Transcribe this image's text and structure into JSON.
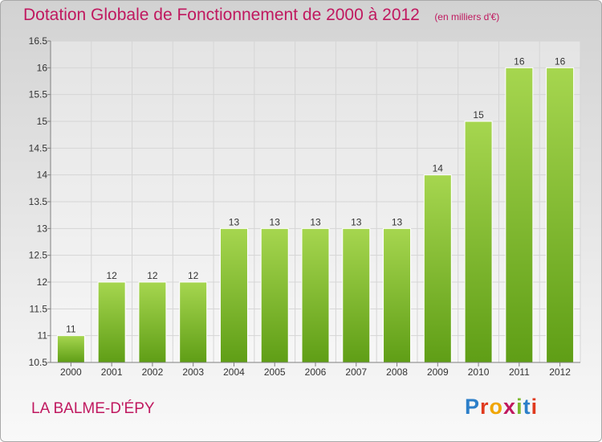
{
  "header": {
    "title": "Dotation Globale de Fonctionnement de 2000 à 2012",
    "subtitle": "(en milliers d'€)"
  },
  "footer": {
    "commune": "LA BALME-D'ÉPY",
    "logo": {
      "text": "Proxiti",
      "letter_colors": [
        "#2c7fc9",
        "#e03a1e",
        "#f0a500",
        "#c0185f",
        "#7cb82f",
        "#2c7fc9",
        "#e03a1e"
      ]
    }
  },
  "chart_data": {
    "type": "bar",
    "categories": [
      "2000",
      "2001",
      "2002",
      "2003",
      "2004",
      "2005",
      "2006",
      "2007",
      "2008",
      "2009",
      "2010",
      "2011",
      "2012"
    ],
    "values": [
      11,
      12,
      12,
      12,
      13,
      13,
      13,
      13,
      13,
      14,
      15,
      16,
      16
    ],
    "data_labels": [
      "11",
      "12",
      "12",
      "12",
      "13",
      "13",
      "13",
      "13",
      "13",
      "14",
      "15",
      "16",
      "16"
    ],
    "ylim": [
      10.5,
      16.5
    ],
    "yticks": [
      "10.5",
      "11",
      "11.5",
      "12",
      "12.5",
      "13",
      "13.5",
      "14",
      "14.5",
      "15",
      "15.5",
      "16",
      "16.5"
    ],
    "grid": true,
    "colors": {
      "bar_top": "#a6d64f",
      "bar_bottom": "#5f9e16",
      "grid": "#d5d5d5",
      "axis": "#808080"
    }
  }
}
